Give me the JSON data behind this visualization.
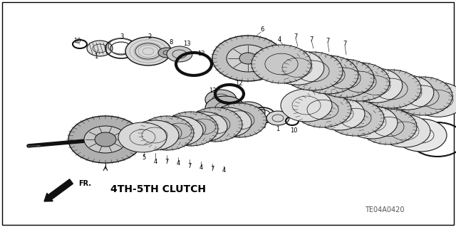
{
  "bg_color": "#ffffff",
  "border_color": "#000000",
  "label_bottom_left": "4TH-5TH CLUTCH",
  "label_fr": "FR.",
  "label_code": "TE04A0420",
  "fig_width": 6.4,
  "fig_height": 3.19,
  "dpi": 100,
  "text_color": "#000000",
  "line_color": "#333333",
  "dark_color": "#111111",
  "mid_gray": "#888888",
  "light_gray": "#cccccc",
  "white": "#ffffff"
}
